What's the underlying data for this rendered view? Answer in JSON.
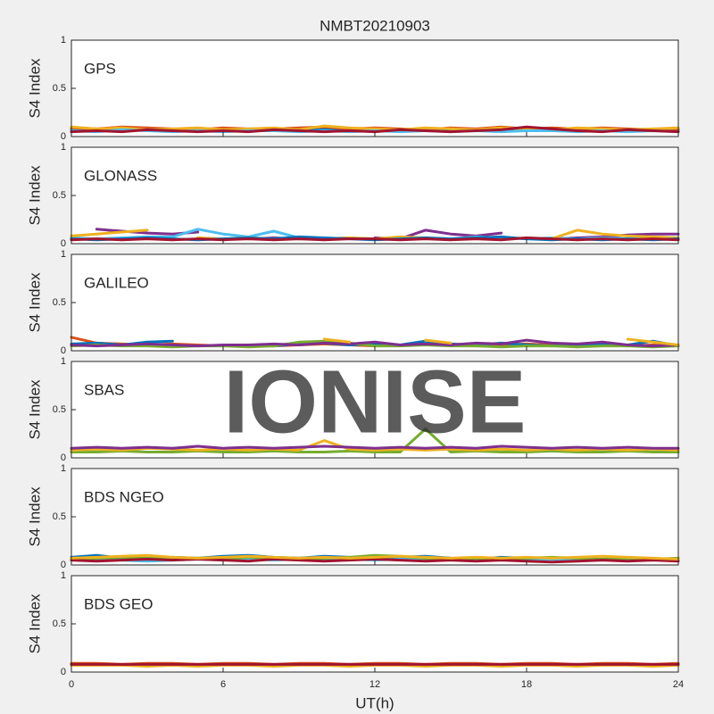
{
  "chart_data": [
    {
      "type": "line",
      "title": "NMBT20210903",
      "annotation": "GPS",
      "ylabel": "S4 Index",
      "xlim": [
        0,
        24
      ],
      "ylim": [
        0,
        1
      ],
      "xticks": [
        0,
        6,
        12,
        18,
        24
      ],
      "yticks": [
        0,
        0.5,
        1
      ],
      "x": [
        0,
        1,
        2,
        3,
        4,
        5,
        6,
        7,
        8,
        9,
        10,
        11,
        12,
        13,
        14,
        15,
        16,
        17,
        18,
        19,
        20,
        21,
        22,
        23,
        24
      ],
      "series": [
        {
          "color": "#0072BD",
          "values": [
            0.07,
            0.06,
            0.08,
            0.07,
            0.06,
            0.07,
            0.08,
            0.06,
            0.07,
            0.06,
            0.08,
            0.07,
            0.07,
            0.06,
            0.08,
            0.07,
            0.06,
            0.07,
            0.08,
            0.06,
            0.07,
            0.06,
            0.07,
            0.06,
            0.07
          ]
        },
        {
          "color": "#D95319",
          "values": [
            0.09,
            0.08,
            0.1,
            0.09,
            0.08,
            0.07,
            0.09,
            0.08,
            0.08,
            0.09,
            0.1,
            0.08,
            0.09,
            0.08,
            0.07,
            0.09,
            0.08,
            0.1,
            0.08,
            0.09,
            0.08,
            0.09,
            0.08,
            0.07,
            0.08
          ]
        },
        {
          "color": "#EDB120",
          "values": [
            0.1,
            0.08,
            0.09,
            0.07,
            0.08,
            0.09,
            0.07,
            0.08,
            0.09,
            0.07,
            0.11,
            0.09,
            0.08,
            0.07,
            0.09,
            0.08,
            0.07,
            0.09,
            0.08,
            0.07,
            0.09,
            0.08,
            0.07,
            0.08,
            0.09
          ]
        },
        {
          "color": "#4DBEEE",
          "values": [
            0.06,
            0.05,
            0.07,
            0.06,
            0.05,
            0.06,
            0.05,
            0.06,
            0.06,
            0.05,
            0.06,
            0.05,
            0.06,
            0.05,
            0.06,
            0.05,
            0.06,
            0.05,
            0.06,
            0.06,
            0.05,
            0.06,
            0.05,
            0.06,
            0.05
          ]
        },
        {
          "color": "#A2142F",
          "values": [
            0.05,
            0.06,
            0.05,
            0.07,
            0.06,
            0.05,
            0.06,
            0.05,
            0.07,
            0.06,
            0.05,
            0.06,
            0.05,
            0.07,
            0.06,
            0.05,
            0.06,
            0.07,
            0.1,
            0.08,
            0.06,
            0.05,
            0.07,
            0.06,
            0.05
          ]
        }
      ]
    },
    {
      "type": "line",
      "annotation": "GLONASS",
      "ylabel": "S4 Index",
      "xlim": [
        0,
        24
      ],
      "ylim": [
        0,
        1
      ],
      "xticks": [
        0,
        6,
        12,
        18,
        24
      ],
      "yticks": [
        0,
        0.5,
        1
      ],
      "x": [
        0,
        1,
        2,
        3,
        4,
        5,
        6,
        7,
        8,
        9,
        10,
        11,
        12,
        13,
        14,
        15,
        16,
        17,
        18,
        19,
        20,
        21,
        22,
        23,
        24
      ],
      "series": [
        {
          "color": "#7E2F8E",
          "values": [
            null,
            0.15,
            0.13,
            0.11,
            0.1,
            0.12,
            null,
            0.05,
            0.06,
            0.05,
            0.05,
            null,
            0.06,
            0.05,
            0.14,
            0.1,
            0.08,
            0.11,
            null,
            0.05,
            0.06,
            0.07,
            0.09,
            0.1,
            0.1
          ]
        },
        {
          "color": "#4DBEEE",
          "values": [
            0.06,
            0.05,
            0.06,
            0.07,
            0.07,
            0.15,
            0.1,
            0.07,
            0.13,
            0.06,
            0.05,
            0.06,
            0.05,
            0.05,
            0.06,
            0.05,
            0.07,
            0.06,
            0.05,
            0.06,
            0.05,
            0.06,
            0.05,
            0.06,
            0.05
          ]
        },
        {
          "color": "#EDB120",
          "values": [
            0.08,
            0.1,
            0.12,
            0.14,
            null,
            0.06,
            0.05,
            0.06,
            0.05,
            0.06,
            0.05,
            0.06,
            0.05,
            0.07,
            0.06,
            0.05,
            0.06,
            0.05,
            0.06,
            0.05,
            0.14,
            0.1,
            0.08,
            0.07,
            0.06
          ]
        },
        {
          "color": "#0072BD",
          "values": [
            0.05,
            0.04,
            0.05,
            0.06,
            0.05,
            0.04,
            0.05,
            0.06,
            0.05,
            0.07,
            0.06,
            0.05,
            0.04,
            0.05,
            0.06,
            0.05,
            0.06,
            0.07,
            0.05,
            0.04,
            0.05,
            0.04,
            0.05,
            0.04,
            0.05
          ]
        },
        {
          "color": "#A2142F",
          "values": [
            0.04,
            0.05,
            0.04,
            0.05,
            0.04,
            0.05,
            0.04,
            0.05,
            0.04,
            0.05,
            0.04,
            0.05,
            0.05,
            0.04,
            0.05,
            0.04,
            0.05,
            0.04,
            0.06,
            0.05,
            0.04,
            0.05,
            0.04,
            0.05,
            0.04
          ]
        }
      ]
    },
    {
      "type": "line",
      "annotation": "GALILEO",
      "ylabel": "S4 Index",
      "xlim": [
        0,
        24
      ],
      "ylim": [
        0,
        1
      ],
      "xticks": [
        0,
        6,
        12,
        18,
        24
      ],
      "yticks": [
        0,
        0.5,
        1
      ],
      "x": [
        0,
        1,
        2,
        3,
        4,
        5,
        6,
        7,
        8,
        9,
        10,
        11,
        12,
        13,
        14,
        15,
        16,
        17,
        18,
        19,
        20,
        21,
        22,
        23,
        24
      ],
      "series": [
        {
          "color": "#D95319",
          "values": [
            0.14,
            0.08,
            0.07,
            0.06,
            0.07,
            0.06,
            0.05,
            0.06,
            0.05,
            0.06,
            0.07,
            0.06,
            0.05,
            0.06,
            0.07,
            0.06,
            0.05,
            0.06,
            0.07,
            0.06,
            0.05,
            0.06,
            0.05,
            0.06,
            0.05
          ]
        },
        {
          "color": "#0072BD",
          "values": [
            0.07,
            0.08,
            0.06,
            0.09,
            0.1,
            null,
            null,
            0.06,
            0.05,
            0.07,
            0.08,
            0.06,
            0.07,
            0.06,
            0.1,
            0.07,
            0.06,
            0.08,
            0.06,
            0.05,
            0.06,
            0.07,
            0.06,
            0.1,
            0.05
          ]
        },
        {
          "color": "#77AC30",
          "values": [
            0.05,
            0.06,
            0.05,
            0.05,
            0.04,
            0.05,
            0.05,
            0.04,
            0.05,
            0.09,
            0.1,
            0.08,
            0.05,
            0.05,
            0.06,
            0.05,
            0.05,
            0.04,
            0.05,
            0.05,
            0.04,
            0.05,
            0.05,
            0.04,
            0.05
          ]
        },
        {
          "color": "#7E2F8E",
          "values": [
            0.06,
            0.05,
            0.06,
            0.07,
            0.06,
            0.05,
            0.06,
            0.06,
            0.07,
            0.06,
            0.08,
            0.07,
            0.09,
            0.06,
            0.07,
            0.06,
            0.08,
            0.07,
            0.11,
            0.08,
            0.07,
            0.09,
            0.06,
            0.05,
            0.06
          ]
        },
        {
          "color": "#EDB120",
          "values": [
            null,
            null,
            null,
            null,
            null,
            null,
            null,
            null,
            null,
            null,
            0.12,
            0.09,
            null,
            null,
            0.11,
            0.08,
            null,
            null,
            0.12,
            null,
            null,
            null,
            0.12,
            0.09,
            0.06
          ]
        }
      ]
    },
    {
      "type": "line",
      "annotation": "SBAS",
      "ylabel": "S4 Index",
      "xlim": [
        0,
        24
      ],
      "ylim": [
        0,
        1
      ],
      "xticks": [
        0,
        6,
        12,
        18,
        24
      ],
      "yticks": [
        0,
        0.5,
        1
      ],
      "x": [
        0,
        1,
        2,
        3,
        4,
        5,
        6,
        7,
        8,
        9,
        10,
        11,
        12,
        13,
        14,
        15,
        16,
        17,
        18,
        19,
        20,
        21,
        22,
        23,
        24
      ],
      "series": [
        {
          "color": "#77AC30",
          "values": [
            0.06,
            0.06,
            0.07,
            0.06,
            0.06,
            0.07,
            0.06,
            0.06,
            0.07,
            0.06,
            0.06,
            0.07,
            0.06,
            0.06,
            0.3,
            0.06,
            0.07,
            0.06,
            0.06,
            0.07,
            0.06,
            0.06,
            0.07,
            0.06,
            0.06
          ]
        },
        {
          "color": "#EDB120",
          "values": [
            0.08,
            0.09,
            0.08,
            0.1,
            0.09,
            0.08,
            0.09,
            0.08,
            0.09,
            0.08,
            0.18,
            0.09,
            0.08,
            0.09,
            0.08,
            0.09,
            0.08,
            0.09,
            0.08,
            0.09,
            0.08,
            0.09,
            0.08,
            0.09,
            0.08
          ]
        },
        {
          "color": "#7E2F8E",
          "values": [
            0.1,
            0.11,
            0.1,
            0.11,
            0.1,
            0.12,
            0.1,
            0.11,
            0.1,
            0.11,
            0.12,
            0.11,
            0.1,
            0.11,
            0.1,
            0.11,
            0.1,
            0.12,
            0.11,
            0.1,
            0.11,
            0.1,
            0.11,
            0.1,
            0.1
          ]
        }
      ]
    },
    {
      "type": "line",
      "annotation": "BDS NGEO",
      "ylabel": "S4 Index",
      "xlim": [
        0,
        24
      ],
      "ylim": [
        0,
        1
      ],
      "xticks": [
        0,
        6,
        12,
        18,
        24
      ],
      "yticks": [
        0,
        0.5,
        1
      ],
      "x": [
        0,
        1,
        2,
        3,
        4,
        5,
        6,
        7,
        8,
        9,
        10,
        11,
        12,
        13,
        14,
        15,
        16,
        17,
        18,
        19,
        20,
        21,
        22,
        23,
        24
      ],
      "series": [
        {
          "color": "#0072BD",
          "values": [
            0.08,
            0.1,
            0.07,
            0.06,
            0.08,
            0.07,
            0.09,
            0.1,
            0.08,
            0.07,
            0.09,
            0.08,
            0.07,
            0.08,
            0.09,
            0.07,
            0.06,
            0.08,
            0.07,
            0.06,
            0.05,
            0.06,
            0.07,
            0.06,
            0.05
          ]
        },
        {
          "color": "#4DBEEE",
          "values": [
            0.05,
            0.06,
            0.05,
            0.04,
            0.05,
            0.06,
            0.05,
            0.06,
            0.05,
            0.06,
            0.05,
            0.06,
            0.05,
            0.06,
            0.05,
            0.06,
            0.05,
            0.06,
            0.05,
            0.06,
            0.05,
            0.06,
            0.05,
            0.06,
            0.05
          ]
        },
        {
          "color": "#77AC30",
          "values": [
            0.06,
            0.07,
            0.08,
            0.07,
            0.06,
            0.07,
            0.06,
            0.08,
            0.07,
            0.06,
            0.07,
            0.08,
            0.1,
            0.09,
            0.07,
            0.06,
            0.07,
            0.06,
            0.07,
            0.08,
            0.07,
            0.06,
            0.07,
            0.06,
            0.07
          ]
        },
        {
          "color": "#A2142F",
          "values": [
            0.05,
            0.04,
            0.05,
            0.06,
            0.05,
            0.06,
            0.05,
            0.04,
            0.06,
            0.05,
            0.04,
            0.05,
            0.06,
            0.05,
            0.04,
            0.05,
            0.04,
            0.05,
            0.04,
            0.03,
            0.04,
            0.05,
            0.04,
            0.05,
            0.04
          ]
        },
        {
          "color": "#EDB120",
          "values": [
            0.07,
            0.08,
            0.09,
            0.1,
            0.08,
            0.07,
            0.08,
            0.09,
            0.08,
            0.07,
            0.08,
            0.07,
            0.08,
            0.09,
            0.08,
            0.07,
            0.08,
            0.07,
            0.08,
            0.07,
            0.08,
            0.09,
            0.08,
            0.07,
            0.06
          ]
        }
      ]
    },
    {
      "type": "line",
      "annotation": "BDS GEO",
      "ylabel": "S4 Index",
      "xlabel": "UT(h)",
      "xlim": [
        0,
        24
      ],
      "ylim": [
        0,
        1
      ],
      "xticks": [
        0,
        6,
        12,
        18,
        24
      ],
      "yticks": [
        0,
        0.5,
        1
      ],
      "x": [
        0,
        1,
        2,
        3,
        4,
        5,
        6,
        7,
        8,
        9,
        10,
        11,
        12,
        13,
        14,
        15,
        16,
        17,
        18,
        19,
        20,
        21,
        22,
        23,
        24
      ],
      "series": [
        {
          "color": "#EDB120",
          "values": [
            0.07,
            0.07,
            0.07,
            0.06,
            0.07,
            0.06,
            0.07,
            0.07,
            0.06,
            0.07,
            0.07,
            0.06,
            0.07,
            0.07,
            0.06,
            0.07,
            0.07,
            0.06,
            0.07,
            0.07,
            0.06,
            0.07,
            0.07,
            0.06,
            0.07
          ]
        },
        {
          "color": "#D95319",
          "values": [
            0.09,
            0.09,
            0.08,
            0.09,
            0.09,
            0.08,
            0.09,
            0.09,
            0.08,
            0.09,
            0.09,
            0.08,
            0.09,
            0.09,
            0.08,
            0.09,
            0.09,
            0.08,
            0.09,
            0.09,
            0.08,
            0.09,
            0.09,
            0.08,
            0.09
          ]
        },
        {
          "color": "#A2142F",
          "values": [
            0.08,
            0.08,
            0.08,
            0.08,
            0.08,
            0.08,
            0.08,
            0.08,
            0.08,
            0.08,
            0.08,
            0.08,
            0.08,
            0.08,
            0.08,
            0.08,
            0.08,
            0.08,
            0.08,
            0.08,
            0.08,
            0.08,
            0.08,
            0.08,
            0.08
          ]
        }
      ]
    }
  ],
  "watermark": "IONISE"
}
